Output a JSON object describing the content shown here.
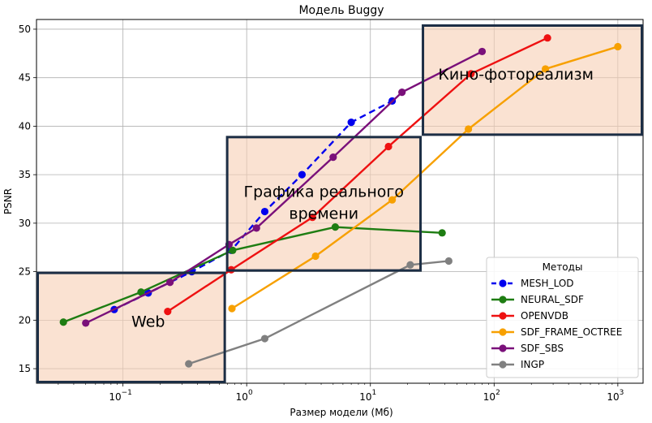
{
  "chart_data": {
    "type": "line",
    "title": "Модель Buggy",
    "xlabel": "Размер модели (Мб)",
    "ylabel": "PSNR",
    "xscale": "log",
    "xlim": [
      0.02,
      1600
    ],
    "ylim": [
      13.5,
      51
    ],
    "x_ticks": [
      {
        "value": 0.1,
        "base": "10",
        "exp": "−1"
      },
      {
        "value": 1,
        "base": "10",
        "exp": "0"
      },
      {
        "value": 10,
        "base": "10",
        "exp": "1"
      },
      {
        "value": 100,
        "base": "10",
        "exp": "2"
      },
      {
        "value": 1000,
        "base": "10",
        "exp": "3"
      }
    ],
    "y_ticks": [
      15,
      20,
      25,
      30,
      35,
      40,
      45,
      50
    ],
    "grid": true,
    "legend": {
      "title": "Методы",
      "placement": "lower right"
    },
    "regions": [
      {
        "label": [
          "Web"
        ],
        "x0": 0.02,
        "x1": 0.68,
        "y0": 13.5,
        "y1": 25.0
      },
      {
        "label": [
          "Графика реального",
          "времени"
        ],
        "x0": 0.68,
        "x1": 26,
        "y0": 25.0,
        "y1": 39.0
      },
      {
        "label": [
          "Кино-фотореализм"
        ],
        "x0": 26,
        "x1": 1600,
        "y0": 39.0,
        "y1": 50.5
      }
    ],
    "series": [
      {
        "name": "MESH_LOD",
        "color": "#0000ee",
        "dashed": true,
        "x": [
          0.085,
          0.16,
          0.36,
          0.75,
          1.4,
          2.8,
          7.0,
          15.0
        ],
        "y": [
          21.1,
          22.8,
          25.0,
          27.2,
          31.2,
          35.0,
          40.4,
          42.6
        ]
      },
      {
        "name": "NEURAL_SDF",
        "color": "#1e7d12",
        "dashed": false,
        "x": [
          0.033,
          0.14,
          0.77,
          5.2,
          38
        ],
        "y": [
          19.8,
          22.9,
          27.2,
          29.6,
          29.0
        ]
      },
      {
        "name": "OPENVDB",
        "color": "#ee1111",
        "dashed": false,
        "x": [
          0.23,
          0.75,
          3.4,
          14.0,
          65,
          270
        ],
        "y": [
          20.9,
          25.2,
          30.6,
          37.9,
          45.4,
          49.1
        ]
      },
      {
        "name": "SDF_FRAME_OCTREE",
        "color": "#f7a000",
        "dashed": false,
        "x": [
          0.76,
          3.6,
          15.0,
          62,
          260,
          1000
        ],
        "y": [
          21.2,
          26.6,
          32.4,
          39.7,
          45.9,
          48.2
        ]
      },
      {
        "name": "SDF_SBS",
        "color": "#7a107a",
        "dashed": false,
        "x": [
          0.05,
          0.24,
          0.72,
          1.2,
          5.0,
          18.0,
          80
        ],
        "y": [
          19.7,
          23.9,
          27.8,
          29.5,
          36.8,
          43.5,
          47.7
        ]
      },
      {
        "name": "INGP",
        "color": "#808080",
        "dashed": false,
        "x": [
          0.34,
          1.4,
          21,
          43
        ],
        "y": [
          15.5,
          18.1,
          25.7,
          26.1
        ]
      }
    ]
  }
}
